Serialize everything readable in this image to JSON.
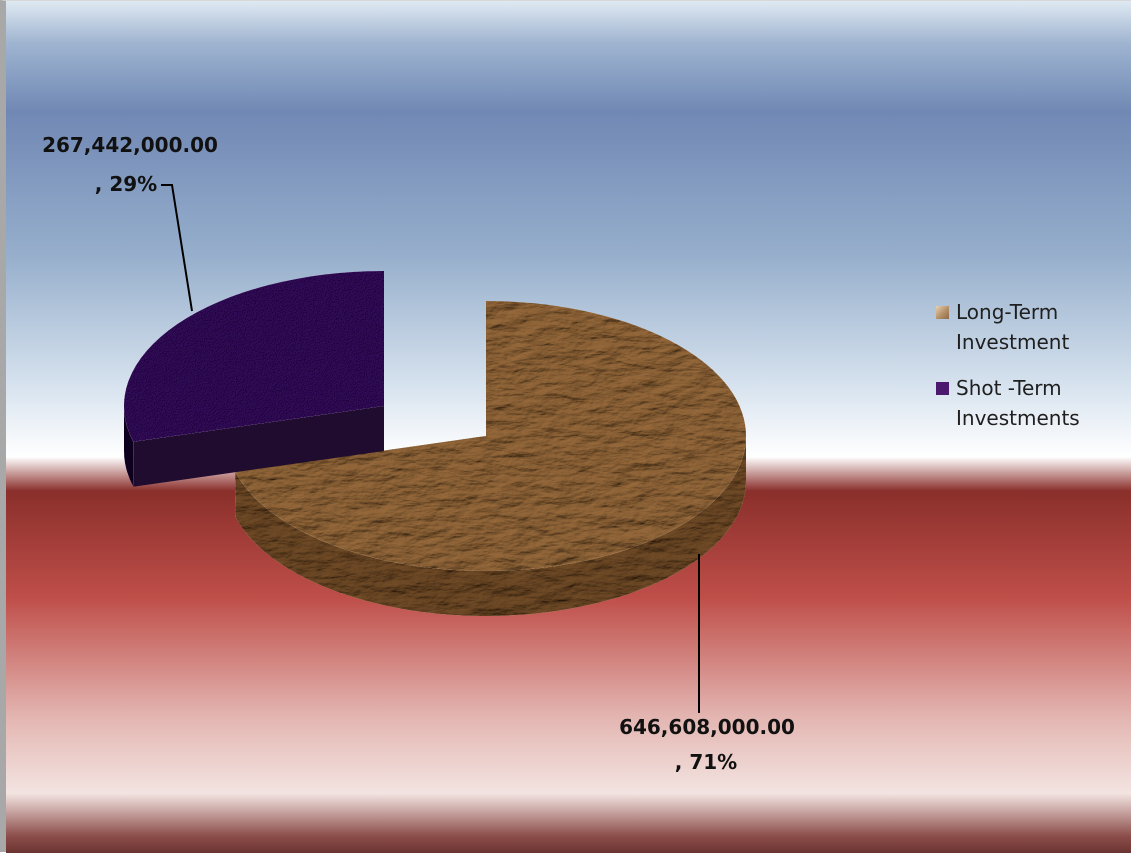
{
  "chart_data": {
    "type": "pie",
    "style": "3d-exploded",
    "title": "",
    "slices": [
      {
        "name": "Long-Term Investment",
        "value": 646608000.0,
        "percent": 71,
        "color": "#a88763",
        "label_value": "646,608,000.00",
        "label_percent": ", 71%"
      },
      {
        "name": "Shot -Term Investments",
        "value": 267442000.0,
        "percent": 29,
        "color": "#4b1a6e",
        "label_value": "267,442,000.00",
        "label_percent": ", 29%"
      }
    ],
    "legend": {
      "placement": "right",
      "entries": [
        "Long-Term Investment",
        "Shot -Term Investments"
      ]
    }
  },
  "colors": {
    "long_term_top": "#a88763",
    "long_term_side": "#7f6244",
    "short_term_top": "#4b1a6e",
    "short_term_side": "#1f0c2e",
    "sky_top": "#6e87b3",
    "floor_red": "#b84a44"
  }
}
